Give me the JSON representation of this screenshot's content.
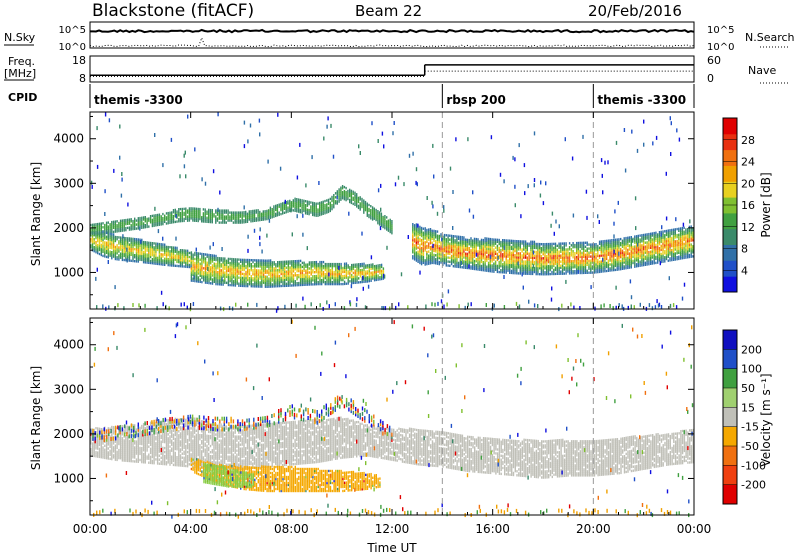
{
  "header": {
    "station": "Blackstone (fitACF)",
    "beam": "Beam 22",
    "date": "20/Feb/2016"
  },
  "noise_panel": {
    "left_label": "N.Sky",
    "right_label": "N.Search",
    "left_ticks": [
      "10^5",
      "10^0"
    ],
    "right_ticks": [
      "10^5",
      "10^0"
    ]
  },
  "freq_panel": {
    "left_label_1": "Freq.",
    "left_label_2": "[MHz]",
    "left_ticks": [
      "18",
      "8"
    ],
    "right_ticks": [
      "60",
      "0"
    ],
    "right_label": "Nave",
    "freq_mhz": [
      {
        "t0": 0,
        "t1": 13.3,
        "v": 10.6
      },
      {
        "t0": 13.3,
        "t1": 24,
        "v": 14.6
      }
    ],
    "nave": [
      {
        "t0": 0,
        "t1": 13.3,
        "v": 13
      },
      {
        "t0": 13.3,
        "t1": 24,
        "v": 25
      }
    ]
  },
  "cpid_panel": {
    "label": "CPID",
    "segments": [
      {
        "name": "themis -3300",
        "start_hr": 0
      },
      {
        "name": "rbsp 200",
        "start_hr": 14.0
      },
      {
        "name": "themis -3300",
        "start_hr": 20.0
      }
    ]
  },
  "chart_data": [
    {
      "type": "heatmap",
      "title": "",
      "xlabel": "Time UT",
      "ylabel": "Slant Range [km]",
      "xlim_hr": [
        0,
        24
      ],
      "ylim": [
        180,
        4600
      ],
      "yticks": [
        1000,
        2000,
        3000,
        4000
      ],
      "colorbar": {
        "label": "Power [dB]",
        "ticks": [
          "4",
          "8",
          "12",
          "16",
          "20",
          "24",
          "28"
        ],
        "range": [
          0,
          32
        ]
      },
      "bands": [
        {
          "name": "upper echo band",
          "points": [
            [
              0,
              1820,
              2080
            ],
            [
              1,
              1900,
              2150
            ],
            [
              2,
              1980,
              2220
            ],
            [
              3,
              2080,
              2340
            ],
            [
              3.5,
              2130,
              2420
            ],
            [
              4,
              2150,
              2450
            ],
            [
              5,
              2100,
              2400
            ],
            [
              6,
              2100,
              2340
            ],
            [
              7,
              2180,
              2400
            ],
            [
              8,
              2380,
              2650
            ],
            [
              9,
              2250,
              2550
            ],
            [
              9.5,
              2350,
              2650
            ],
            [
              10,
              2650,
              2950
            ],
            [
              10.5,
              2500,
              2800
            ],
            [
              11,
              2250,
              2550
            ],
            [
              12,
              1850,
              2150
            ]
          ],
          "level": [
            10,
            14
          ]
        },
        {
          "name": "main echo band",
          "points": [
            [
              0,
              1500,
              1900
            ],
            [
              0.5,
              1350,
              1900
            ],
            [
              1,
              1280,
              1820
            ],
            [
              2,
              1220,
              1720
            ],
            [
              3,
              1150,
              1600
            ],
            [
              4,
              1100,
              1450
            ]
          ],
          "level": [
            8,
            22
          ]
        },
        {
          "name": "lower echo band",
          "points": [
            [
              4,
              800,
              1450
            ],
            [
              5,
              720,
              1350
            ],
            [
              6,
              680,
              1280
            ],
            [
              7,
              660,
              1250
            ],
            [
              8,
              690,
              1250
            ],
            [
              9,
              720,
              1230
            ],
            [
              10,
              720,
              1180
            ],
            [
              11,
              780,
              1180
            ],
            [
              11.7,
              850,
              1150
            ]
          ],
          "level": [
            8,
            24
          ]
        },
        {
          "name": "post-midday band",
          "points": [
            [
              12.8,
              1300,
              2100
            ],
            [
              13.2,
              1150,
              2000
            ],
            [
              13.6,
              1200,
              1950
            ],
            [
              14,
              1150,
              1850
            ],
            [
              15,
              1080,
              1750
            ],
            [
              16,
              1000,
              1750
            ],
            [
              17,
              960,
              1700
            ],
            [
              18,
              940,
              1650
            ],
            [
              19,
              960,
              1650
            ],
            [
              20,
              980,
              1650
            ],
            [
              21,
              1050,
              1750
            ],
            [
              22,
              1150,
              1850
            ],
            [
              23,
              1250,
              1950
            ],
            [
              24,
              1350,
              2050
            ]
          ],
          "level": [
            6,
            28
          ]
        }
      ]
    },
    {
      "type": "heatmap",
      "title": "",
      "xlabel": "Time UT",
      "ylabel": "Slant Range [km]",
      "xlim_hr": [
        0,
        24
      ],
      "ylim": [
        180,
        4600
      ],
      "yticks": [
        1000,
        2000,
        3000,
        4000
      ],
      "xticks": [
        "00:00",
        "04:00",
        "08:00",
        "12:00",
        "16:00",
        "20:00",
        "00:00"
      ],
      "colorbar": {
        "label": "Velocity [m s⁻¹]",
        "ticks": [
          "200",
          "100",
          "50",
          "15",
          "-15",
          "-50",
          "-100",
          "-200"
        ]
      },
      "regions": [
        {
          "name": "ground scatter",
          "color": "#c0c0b8",
          "points": [
            [
              0,
              1500,
              2100
            ],
            [
              1,
              1400,
              2150
            ],
            [
              2,
              1350,
              2200
            ],
            [
              3,
              1300,
              2300
            ],
            [
              4,
              1250,
              2350
            ],
            [
              5,
              1200,
              2200
            ],
            [
              6,
              1200,
              2150
            ],
            [
              7,
              1250,
              2200
            ],
            [
              8,
              1300,
              2250
            ],
            [
              9,
              1350,
              2300
            ],
            [
              10,
              1450,
              2350
            ],
            [
              11,
              1500,
              2200
            ],
            [
              12,
              1400,
              2100
            ],
            [
              13,
              1300,
              2100
            ],
            [
              14,
              1250,
              2050
            ],
            [
              15,
              1150,
              1950
            ],
            [
              16,
              1100,
              1900
            ],
            [
              17,
              1050,
              1850
            ],
            [
              18,
              1000,
              1850
            ],
            [
              19,
              1050,
              1850
            ],
            [
              20,
              1050,
              1850
            ],
            [
              21,
              1100,
              1900
            ],
            [
              22,
              1200,
              1950
            ],
            [
              23,
              1300,
              2000
            ],
            [
              24,
              1350,
              2100
            ]
          ]
        },
        {
          "name": "negative flow",
          "color": "#f5a800",
          "points": [
            [
              4,
              1150,
              1450
            ],
            [
              5,
              900,
              1300
            ],
            [
              6,
              750,
              1250
            ],
            [
              7,
              700,
              1250
            ],
            [
              8,
              700,
              1250
            ],
            [
              9,
              700,
              1200
            ],
            [
              10,
              700,
              1150
            ],
            [
              11,
              750,
              1100
            ],
            [
              11.5,
              800,
              1050
            ]
          ]
        },
        {
          "name": "weak flow",
          "color": "#88cc44",
          "points": [
            [
              4.5,
              900,
              1350
            ],
            [
              5.5,
              800,
              1200
            ],
            [
              6.5,
              800,
              1100
            ]
          ]
        }
      ]
    }
  ]
}
